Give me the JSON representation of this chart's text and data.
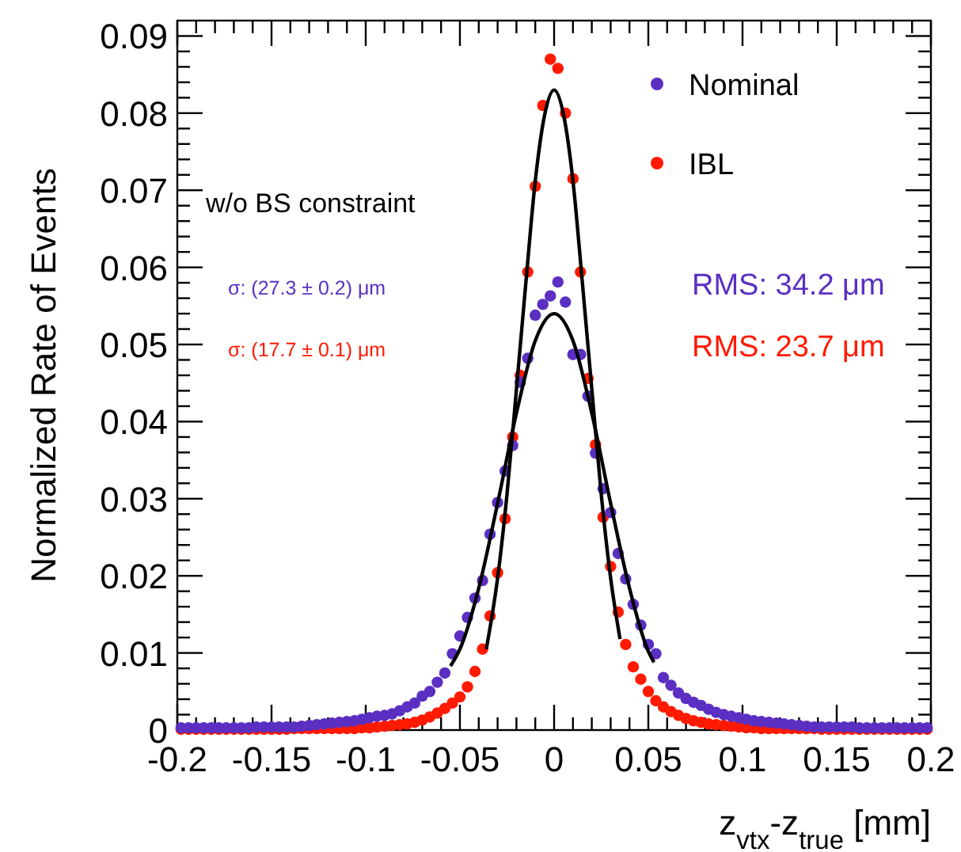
{
  "chart_data": {
    "type": "scatter",
    "ylabel": "Normalized Rate of Events",
    "xlabel": "z$_{vtx}$-z$_{true}$ [mm]",
    "annotations": [
      "w/o BS constraint",
      "σ: (27.3 ± 0.2) μm",
      "σ: (17.7 ± 0.1) μm",
      "RMS: 34.2 μm",
      "RMS: 23.7 μm"
    ],
    "xlim": [
      -0.2,
      0.2
    ],
    "ylim": [
      0,
      0.092
    ],
    "xticks": [
      -0.2,
      {
        "value": -0.19,
        "label": null
      },
      {
        "value": -0.18,
        "label": null
      },
      {
        "value": -0.17,
        "label": null
      },
      {
        "value": -0.16,
        "label": null
      },
      -0.15,
      {
        "value": -0.14,
        "label": null
      },
      {
        "value": -0.13,
        "label": null
      },
      {
        "value": -0.12,
        "label": null
      },
      {
        "value": -0.11,
        "label": null
      },
      -0.1,
      {
        "value": -0.09,
        "label": null
      },
      {
        "value": -0.08,
        "label": null
      },
      {
        "value": -0.07,
        "label": null
      },
      {
        "value": -0.06,
        "label": null
      },
      -0.05,
      {
        "value": -0.04,
        "label": null
      },
      {
        "value": -0.03,
        "label": null
      },
      {
        "value": -0.02,
        "label": null
      },
      {
        "value": -0.01,
        "label": null
      },
      0,
      {
        "value": 0.01,
        "label": null
      },
      {
        "value": 0.02,
        "label": null
      },
      {
        "value": 0.03,
        "label": null
      },
      {
        "value": 0.04,
        "label": null
      },
      0.05,
      {
        "value": 0.06,
        "label": null
      },
      {
        "value": 0.07,
        "label": null
      },
      {
        "value": 0.08,
        "label": null
      },
      {
        "value": 0.09,
        "label": null
      },
      0.1,
      {
        "value": 0.11,
        "label": null
      },
      {
        "value": 0.12,
        "label": null
      },
      {
        "value": 0.13,
        "label": null
      },
      {
        "value": 0.14,
        "label": null
      },
      0.15,
      {
        "value": 0.16,
        "label": null
      },
      {
        "value": 0.17,
        "label": null
      },
      {
        "value": 0.18,
        "label": null
      },
      {
        "value": 0.19,
        "label": null
      },
      0.2
    ],
    "yticks": [
      0,
      {
        "value": 0.002,
        "label": null
      },
      {
        "value": 0.004,
        "label": null
      },
      {
        "value": 0.006,
        "label": null
      },
      {
        "value": 0.008,
        "label": null
      },
      0.01,
      {
        "value": 0.012,
        "label": null
      },
      {
        "value": 0.014,
        "label": null
      },
      {
        "value": 0.016,
        "label": null
      },
      {
        "value": 0.018,
        "label": null
      },
      0.02,
      {
        "value": 0.022,
        "label": null
      },
      {
        "value": 0.024,
        "label": null
      },
      {
        "value": 0.026,
        "label": null
      },
      {
        "value": 0.028,
        "label": null
      },
      0.03,
      {
        "value": 0.032,
        "label": null
      },
      {
        "value": 0.034,
        "label": null
      },
      {
        "value": 0.036,
        "label": null
      },
      {
        "value": 0.038,
        "label": null
      },
      0.04,
      {
        "value": 0.042,
        "label": null
      },
      {
        "value": 0.044,
        "label": null
      },
      {
        "value": 0.046,
        "label": null
      },
      {
        "value": 0.048,
        "label": null
      },
      0.05,
      {
        "value": 0.052,
        "label": null
      },
      {
        "value": 0.054,
        "label": null
      },
      {
        "value": 0.056,
        "label": null
      },
      {
        "value": 0.058,
        "label": null
      },
      0.06,
      {
        "value": 0.062,
        "label": null
      },
      {
        "value": 0.064,
        "label": null
      },
      {
        "value": 0.066,
        "label": null
      },
      {
        "value": 0.068,
        "label": null
      },
      0.07,
      {
        "value": 0.072,
        "label": null
      },
      {
        "value": 0.074,
        "label": null
      },
      {
        "value": 0.076,
        "label": null
      },
      {
        "value": 0.078,
        "label": null
      },
      0.08,
      {
        "value": 0.082,
        "label": null
      },
      {
        "value": 0.084,
        "label": null
      },
      {
        "value": 0.086,
        "label": null
      },
      {
        "value": 0.088,
        "label": null
      },
      0.09
    ],
    "legend": "top right",
    "marker": "circle",
    "x": [
      -0.198,
      -0.194,
      -0.19,
      -0.186,
      -0.182,
      -0.178,
      -0.174,
      -0.17,
      -0.166,
      -0.162,
      -0.158,
      -0.154,
      -0.15,
      -0.146,
      -0.142,
      -0.138,
      -0.134,
      -0.13,
      -0.126,
      -0.122,
      -0.118,
      -0.114,
      -0.11,
      -0.106,
      -0.102,
      -0.098,
      -0.094,
      -0.09,
      -0.086,
      -0.082,
      -0.078,
      -0.074,
      -0.07,
      -0.066,
      -0.062,
      -0.058,
      -0.054,
      -0.05,
      -0.046,
      -0.042,
      -0.038,
      -0.034,
      -0.03,
      -0.026,
      -0.022,
      -0.018,
      -0.014,
      -0.01,
      -0.006,
      -0.002,
      0.002,
      0.006,
      0.01,
      0.014,
      0.018,
      0.022,
      0.026,
      0.03,
      0.034,
      0.038,
      0.042,
      0.046,
      0.05,
      0.054,
      0.058,
      0.062,
      0.066,
      0.07,
      0.074,
      0.078,
      0.082,
      0.086,
      0.09,
      0.094,
      0.098,
      0.102,
      0.106,
      0.11,
      0.114,
      0.118,
      0.122,
      0.126,
      0.13,
      0.134,
      0.138,
      0.142,
      0.146,
      0.15,
      0.154,
      0.158,
      0.162,
      0.166,
      0.17,
      0.174,
      0.178,
      0.182,
      0.186,
      0.19,
      0.194,
      0.198
    ],
    "series": [
      {
        "name": "Nominal",
        "color": "#5a2fc2",
        "values": [
          0.0003,
          0.0003,
          0.0003,
          0.0003,
          0.0003,
          0.0003,
          0.0003,
          0.0003,
          0.0003,
          0.0003,
          0.0004,
          0.0004,
          0.0004,
          0.0004,
          0.0004,
          0.0004,
          0.0005,
          0.0006,
          0.0007,
          0.0008,
          0.0009,
          0.001,
          0.0011,
          0.0012,
          0.0014,
          0.0016,
          0.0018,
          0.0019,
          0.0021,
          0.0025,
          0.003,
          0.0035,
          0.0044,
          0.005,
          0.0062,
          0.0074,
          0.0099,
          0.0122,
          0.0146,
          0.0171,
          0.0194,
          0.0254,
          0.0295,
          0.0336,
          0.0369,
          0.0451,
          0.0482,
          0.0538,
          0.0552,
          0.0563,
          0.0581,
          0.0555,
          0.0487,
          0.0487,
          0.0433,
          0.0359,
          0.0313,
          0.0282,
          0.0229,
          0.0196,
          0.0163,
          0.0136,
          0.0111,
          0.0099,
          0.0068,
          0.0058,
          0.0048,
          0.0041,
          0.0036,
          0.0032,
          0.0027,
          0.0023,
          0.002,
          0.0018,
          0.0016,
          0.0014,
          0.0012,
          0.0011,
          0.001,
          0.0009,
          0.0008,
          0.0007,
          0.0006,
          0.0005,
          0.0004,
          0.0004,
          0.0004,
          0.0004,
          0.0004,
          0.0004,
          0.0003,
          0.0003,
          0.0003,
          0.0003,
          0.0003,
          0.0003,
          0.0003,
          0.0003,
          0.0003,
          0.0003
        ]
      },
      {
        "name": "IBL",
        "color": "#ff1a00",
        "values": [
          0.0001,
          0.0001,
          0.0001,
          0.0001,
          0.0001,
          0.0001,
          0.0001,
          0.0001,
          0.0001,
          0.0001,
          0.0001,
          0.0001,
          0.0001,
          0.0001,
          0.0001,
          0.0002,
          0.0002,
          0.0002,
          0.0002,
          0.0002,
          0.0002,
          0.0002,
          0.0002,
          0.0002,
          0.0003,
          0.0003,
          0.0004,
          0.0005,
          0.0006,
          0.0007,
          0.0008,
          0.001,
          0.0013,
          0.0017,
          0.0022,
          0.0028,
          0.0035,
          0.0043,
          0.0056,
          0.0076,
          0.0105,
          0.0148,
          0.0204,
          0.0274,
          0.038,
          0.046,
          0.0594,
          0.0705,
          0.081,
          0.087,
          0.0858,
          0.08,
          0.0715,
          0.0594,
          0.0456,
          0.037,
          0.0276,
          0.0212,
          0.0153,
          0.0111,
          0.0082,
          0.0066,
          0.005,
          0.0038,
          0.003,
          0.0024,
          0.0019,
          0.0015,
          0.0012,
          0.001,
          0.0008,
          0.0007,
          0.0006,
          0.0005,
          0.0004,
          0.0003,
          0.0003,
          0.0002,
          0.0002,
          0.0002,
          0.0002,
          0.0002,
          0.0002,
          0.0002,
          0.0002,
          0.0001,
          0.0001,
          0.0001,
          0.0001,
          0.0001,
          0.0001,
          0.0001,
          0.0001,
          0.0001,
          0.0001,
          0.0001,
          0.0001,
          0.0001,
          0.0001,
          0.0001
        ]
      },
      {
        "type": "line",
        "color": "#000000",
        "marker": "none",
        "x": [
          -0.055,
          -0.05,
          -0.04,
          -0.03,
          -0.02,
          -0.01,
          0,
          0.01,
          0.02,
          0.03,
          0.04,
          0.05,
          0.053
        ],
        "values": [
          0.0083,
          0.0105,
          0.0184,
          0.0294,
          0.0411,
          0.0505,
          0.054,
          0.0505,
          0.0411,
          0.0294,
          0.0184,
          0.0102,
          0.0088
        ]
      },
      {
        "type": "line",
        "color": "#000000",
        "marker": "none",
        "x": [
          -0.036,
          -0.03,
          -0.025,
          -0.02,
          -0.015,
          -0.01,
          -0.005,
          0,
          0.005,
          0.01,
          0.015,
          0.02,
          0.025,
          0.03,
          0.035
        ],
        "values": [
          0.0105,
          0.0197,
          0.0306,
          0.0442,
          0.058,
          0.0712,
          0.0798,
          0.083,
          0.0798,
          0.0712,
          0.058,
          0.0442,
          0.0306,
          0.0197,
          0.0118
        ]
      }
    ]
  }
}
